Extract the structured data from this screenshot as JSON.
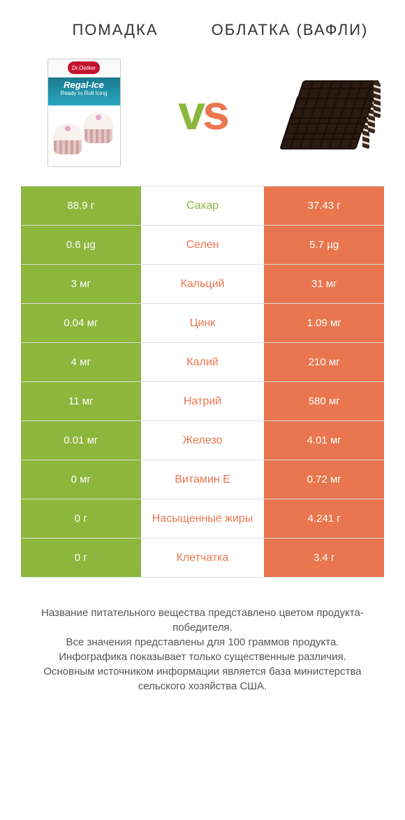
{
  "header": {
    "left_title": "ПОМАДКА",
    "right_title": "ОБЛАТКА (ВАФЛИ)"
  },
  "vs_label": {
    "v": "v",
    "s": "s"
  },
  "fondant_pack": {
    "logo": "Dr.Oetker",
    "line1": "Regal-Ice",
    "line2": "Ready to Roll Icing"
  },
  "colors": {
    "left_win": "#8cb63c",
    "right_win": "#e9764e",
    "row_border": "#dddddd",
    "cell_text": "#ffffff"
  },
  "table": {
    "type": "comparison-table",
    "columns": [
      "left_value",
      "nutrient",
      "right_value"
    ],
    "rows": [
      {
        "left": "88.9 г",
        "mid": "Сахар",
        "right": "37.43 г",
        "winner": "left"
      },
      {
        "left": "0.6 µg",
        "mid": "Селен",
        "right": "5.7 µg",
        "winner": "right"
      },
      {
        "left": "3 мг",
        "mid": "Кальций",
        "right": "31 мг",
        "winner": "right"
      },
      {
        "left": "0.04 мг",
        "mid": "Цинк",
        "right": "1.09 мг",
        "winner": "right"
      },
      {
        "left": "4 мг",
        "mid": "Калий",
        "right": "210 мг",
        "winner": "right"
      },
      {
        "left": "11 мг",
        "mid": "Натрий",
        "right": "580 мг",
        "winner": "right"
      },
      {
        "left": "0.01 мг",
        "mid": "Железо",
        "right": "4.01 мг",
        "winner": "right"
      },
      {
        "left": "0 мг",
        "mid": "Витамин E",
        "right": "0.72 мг",
        "winner": "right"
      },
      {
        "left": "0 г",
        "mid": "Насыщенные жиры",
        "right": "4.241 г",
        "winner": "right"
      },
      {
        "left": "0 г",
        "mid": "Клетчатка",
        "right": "3.4 г",
        "winner": "right"
      }
    ]
  },
  "footer": {
    "lines": [
      "Название питательного вещества представлено цветом продукта-победителя.",
      "Все значения представлены для 100 граммов продукта.",
      "Инфографика показывает только существенные различия.",
      "Основным источником информации является база министерства сельского хозяйства США."
    ]
  }
}
